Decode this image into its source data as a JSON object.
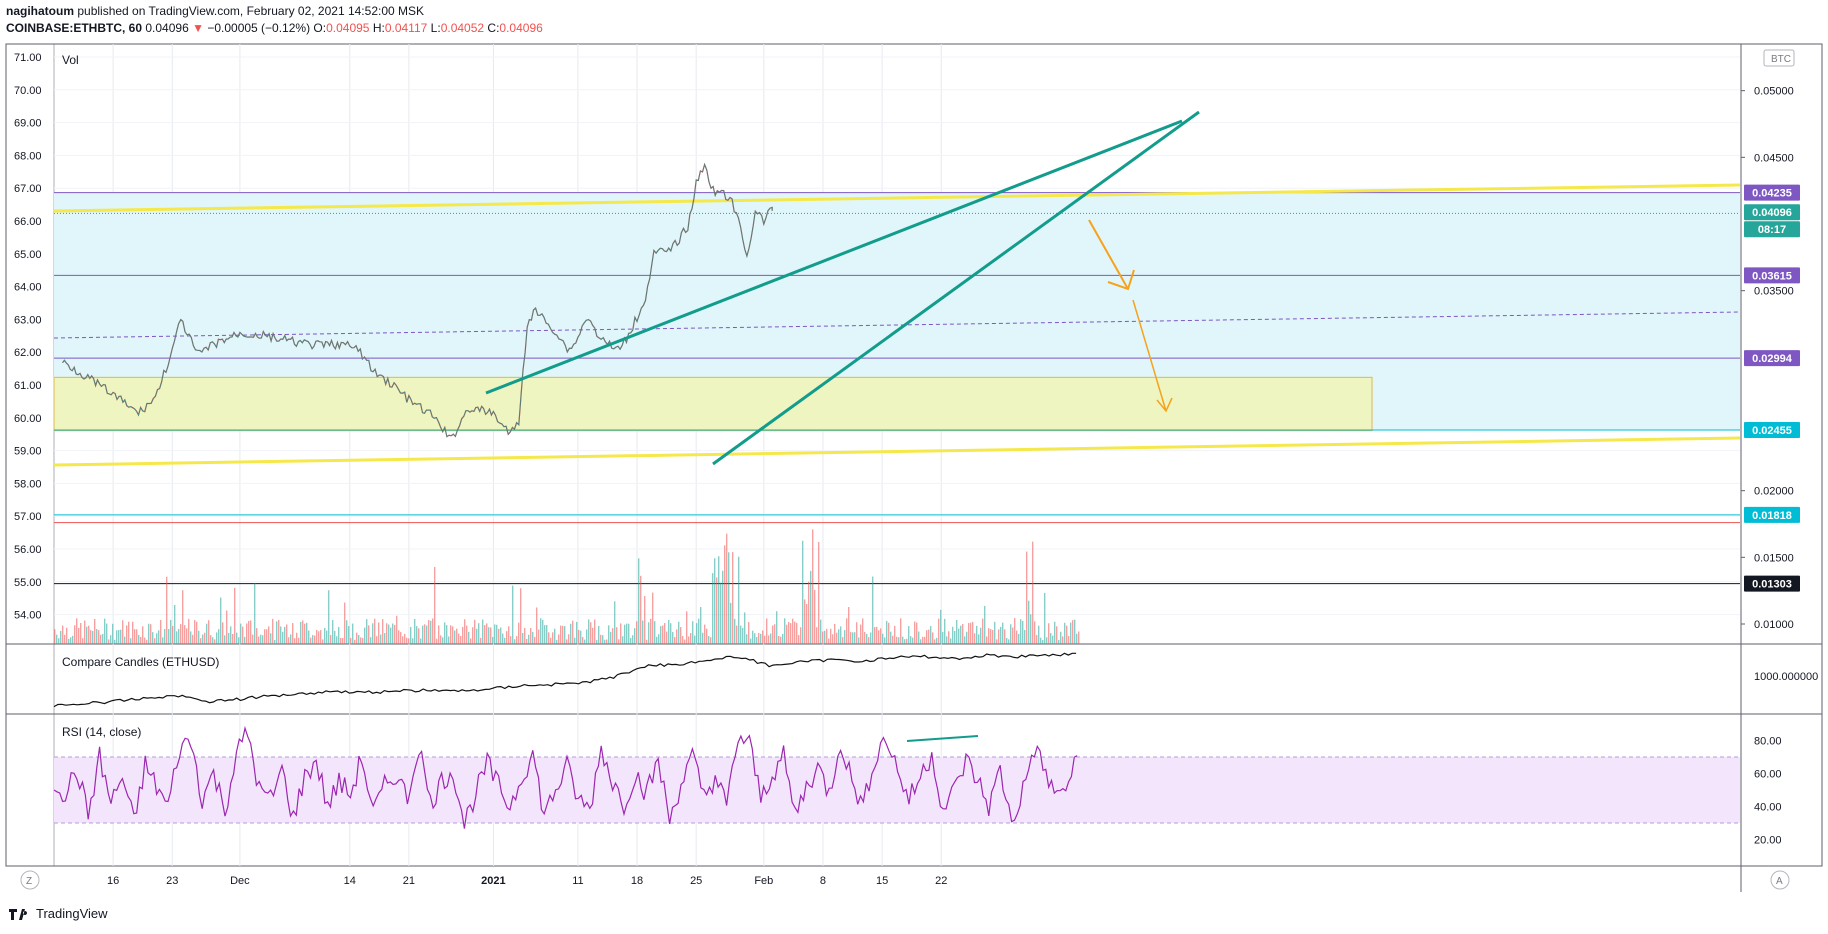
{
  "header": {
    "author": "nagihatoum",
    "published_text": "published on TradingView.com, February 02, 2021 14:52:00 MSK",
    "symbol": "COINBASE:ETHBTC, 60",
    "last": "0.04096",
    "change": "−0.00005 (−0.12%)",
    "o_label": "O:",
    "o": "0.04095",
    "h_label": "H:",
    "h": "0.04117",
    "l_label": "L:",
    "l": "0.04052",
    "c_label": "C:",
    "c": "0.04096"
  },
  "footer": {
    "brand": "TradingView"
  },
  "colors": {
    "up": "#26a69a",
    "down": "#ef5350",
    "teal_line": "#129c8c",
    "yellow": "#f5e84a",
    "orange": "#f7a21b",
    "purple": "#7e57c2",
    "rsi": "#9c27b0",
    "zone_blue": "#e0f6fa",
    "zone_yellow": "#eef5c0"
  },
  "chart_data": [
    {
      "type": "line",
      "title": "COINBASE:ETHBTC, 60",
      "unit": "BTC",
      "x_ticks": [
        "16",
        "23",
        "Dec",
        "14",
        "21",
        "2021",
        "11",
        "18",
        "25",
        "Feb",
        "8",
        "15",
        "22"
      ],
      "y_right_ticks": [
        "0.05000",
        "0.04500",
        "0.03500",
        "0.02000",
        "0.01500",
        "0.01000"
      ],
      "y_left_ticks": [
        "71.00",
        "70.00",
        "69.00",
        "68.00",
        "67.00",
        "66.00",
        "65.00",
        "64.00",
        "63.00",
        "62.00",
        "61.00",
        "60.00",
        "59.00",
        "58.00",
        "57.00",
        "56.00",
        "55.00",
        "54.00"
      ],
      "price_labels": [
        {
          "value": "0.04235",
          "color": "#7e57c2"
        },
        {
          "value": "0.04096",
          "color": "#26a69a"
        },
        {
          "value": "08:17",
          "color": "#26a69a"
        },
        {
          "value": "0.03615",
          "color": "#7e57c2"
        },
        {
          "value": "0.02994",
          "color": "#7e57c2"
        },
        {
          "value": "0.02455",
          "color": "#00bcd4"
        },
        {
          "value": "0.01818",
          "color": "#00bcd4"
        },
        {
          "value": "0.01303",
          "color": "#131722"
        }
      ],
      "series": [
        {
          "name": "ETHBTC",
          "points": [
            [
              "Nov 10",
              0.0297
            ],
            [
              "Nov 13",
              0.0285
            ],
            [
              "Nov 16",
              0.0272
            ],
            [
              "Nov 19",
              0.0258
            ],
            [
              "Nov 21",
              0.027
            ],
            [
              "Nov 23",
              0.0305
            ],
            [
              "Nov 24",
              0.0328
            ],
            [
              "Nov 26",
              0.0302
            ],
            [
              "Nov 28",
              0.031
            ],
            [
              "Dec 1",
              0.0318
            ],
            [
              "Dec 4",
              0.0316
            ],
            [
              "Dec 7",
              0.0312
            ],
            [
              "Dec 10",
              0.0309
            ],
            [
              "Dec 13",
              0.031
            ],
            [
              "Dec 15",
              0.0306
            ],
            [
              "Dec 17",
              0.0288
            ],
            [
              "Dec 19",
              0.028
            ],
            [
              "Dec 21",
              0.0268
            ],
            [
              "Dec 24",
              0.0255
            ],
            [
              "Dec 26",
              0.0238
            ],
            [
              "Dec 27",
              0.025
            ],
            [
              "Dec 28",
              0.0262
            ],
            [
              "Dec 31",
              0.0258
            ],
            [
              "Jan 2",
              0.0242
            ],
            [
              "Jan 3",
              0.0252
            ],
            [
              "Jan 4",
              0.0325
            ],
            [
              "Jan 5",
              0.0335
            ],
            [
              "Jan 7",
              0.0322
            ],
            [
              "Jan 9",
              0.0305
            ],
            [
              "Jan 10",
              0.0315
            ],
            [
              "Jan 11",
              0.033
            ],
            [
              "Jan 13",
              0.0312
            ],
            [
              "Jan 15",
              0.0305
            ],
            [
              "Jan 17",
              0.033
            ],
            [
              "Jan 18",
              0.0345
            ],
            [
              "Jan 19",
              0.0378
            ],
            [
              "Jan 21",
              0.038
            ],
            [
              "Jan 23",
              0.0398
            ],
            [
              "Jan 24",
              0.043
            ],
            [
              "Jan 25",
              0.0445
            ],
            [
              "Jan 26",
              0.0425
            ],
            [
              "Jan 28",
              0.042
            ],
            [
              "Jan 29",
              0.0402
            ],
            [
              "Jan 30",
              0.0375
            ],
            [
              "Jan 31",
              0.041
            ],
            [
              "Feb 1",
              0.0402
            ],
            [
              "Feb 2",
              0.0412
            ],
            [
              "Feb 2",
              0.04096
            ]
          ]
        }
      ]
    },
    {
      "type": "line",
      "title": "Compare Candles (ETHUSD)",
      "y_ticks": [
        "1000.000000"
      ],
      "series": [
        {
          "name": "ETHUSD",
          "values": [
            0.05,
            0.08,
            0.12,
            0.18,
            0.22,
            0.12,
            0.16,
            0.22,
            0.26,
            0.3,
            0.28,
            0.3,
            0.32,
            0.3,
            0.34,
            0.4,
            0.42,
            0.45,
            0.55,
            0.75,
            0.78,
            0.85,
            0.92,
            0.76,
            0.82,
            0.86,
            0.84,
            0.9,
            0.92,
            0.88,
            0.94,
            0.92,
            0.95,
            0.97
          ]
        }
      ]
    },
    {
      "type": "line",
      "title": "RSI (14, close)",
      "y_ticks": [
        "80.00",
        "60.00",
        "40.00",
        "20.00"
      ],
      "ylim": [
        10,
        90
      ],
      "band": [
        30,
        70
      ],
      "series": [
        {
          "name": "RSI",
          "values": [
            55,
            48,
            62,
            35,
            70,
            42,
            58,
            30,
            65,
            52,
            40,
            75,
            80,
            45,
            60,
            38,
            72,
            85,
            50,
            44,
            62,
            33,
            58,
            68,
            40,
            55,
            47,
            70,
            36,
            52,
            60,
            45,
            78,
            42,
            55,
            62,
            30,
            48,
            66,
            52,
            40,
            58,
            72,
            35,
            50,
            64,
            44,
            38,
            76,
            55,
            42,
            60,
            48,
            68,
            32,
            54,
            70,
            46,
            58,
            40,
            82,
            78,
            45,
            60,
            70,
            35,
            52,
            64,
            48,
            80,
            55,
            40,
            70,
            82,
            62,
            44,
            58,
            72,
            38,
            50,
            68,
            56,
            40,
            62,
            30,
            50,
            76,
            60,
            45,
            55,
            72
          ]
        }
      ]
    }
  ]
}
